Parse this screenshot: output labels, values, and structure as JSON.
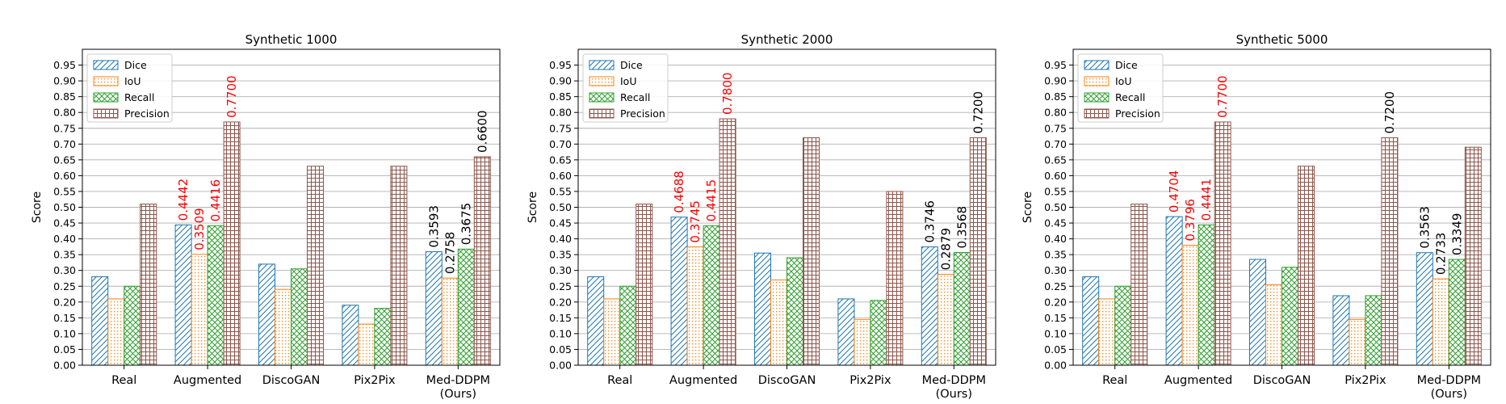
{
  "colors": {
    "Dice": "#1f77b4",
    "IoU": "#ff7f0e",
    "Recall": "#2ca02c",
    "Precision": "#8c564b",
    "highlight_label": "#ff0000",
    "normal_label": "#000000",
    "grid": "#b0b0b0"
  },
  "chart_data": [
    {
      "type": "bar",
      "title": "Synthetic 1000",
      "ylabel": "Score",
      "ylim": [
        0,
        1
      ],
      "yticks": [
        "0.00",
        "0.05",
        "0.10",
        "0.15",
        "0.20",
        "0.25",
        "0.30",
        "0.35",
        "0.40",
        "0.45",
        "0.50",
        "0.55",
        "0.60",
        "0.65",
        "0.70",
        "0.75",
        "0.80",
        "0.85",
        "0.90",
        "0.95"
      ],
      "grid": true,
      "legend": "top-left",
      "categories": [
        "Real",
        "Augmented",
        "DiscoGAN",
        "Pix2Pix",
        "Med-DDPM\n(Ours)"
      ],
      "series": [
        {
          "name": "Dice",
          "values": [
            0.28,
            0.4442,
            0.32,
            0.19,
            0.3593
          ]
        },
        {
          "name": "IoU",
          "values": [
            0.21,
            0.3509,
            0.24,
            0.13,
            0.2758
          ]
        },
        {
          "name": "Recall",
          "values": [
            0.25,
            0.4416,
            0.305,
            0.18,
            0.3675
          ]
        },
        {
          "name": "Precision",
          "values": [
            0.51,
            0.77,
            0.63,
            0.63,
            0.66
          ]
        }
      ],
      "labels": [
        {
          "category": 1,
          "series": 0,
          "text": "0.4442",
          "color": "red"
        },
        {
          "category": 1,
          "series": 1,
          "text": "0.3509",
          "color": "red"
        },
        {
          "category": 1,
          "series": 2,
          "text": "0.4416",
          "color": "red"
        },
        {
          "category": 1,
          "series": 3,
          "text": "0.7700",
          "color": "red"
        },
        {
          "category": 4,
          "series": 0,
          "text": "0.3593",
          "color": "black"
        },
        {
          "category": 4,
          "series": 1,
          "text": "0.2758",
          "color": "black"
        },
        {
          "category": 4,
          "series": 2,
          "text": "0.3675",
          "color": "black"
        },
        {
          "category": 4,
          "series": 3,
          "text": "0.6600",
          "color": "black"
        }
      ]
    },
    {
      "type": "bar",
      "title": "Synthetic 2000",
      "ylabel": "Score",
      "ylim": [
        0,
        1
      ],
      "yticks": [
        "0.00",
        "0.05",
        "0.10",
        "0.15",
        "0.20",
        "0.25",
        "0.30",
        "0.35",
        "0.40",
        "0.45",
        "0.50",
        "0.55",
        "0.60",
        "0.65",
        "0.70",
        "0.75",
        "0.80",
        "0.85",
        "0.90",
        "0.95"
      ],
      "grid": true,
      "legend": "top-left",
      "categories": [
        "Real",
        "Augmented",
        "DiscoGAN",
        "Pix2Pix",
        "Med-DDPM\n(Ours)"
      ],
      "series": [
        {
          "name": "Dice",
          "values": [
            0.28,
            0.4688,
            0.355,
            0.21,
            0.3746
          ]
        },
        {
          "name": "IoU",
          "values": [
            0.21,
            0.3745,
            0.27,
            0.145,
            0.2879
          ]
        },
        {
          "name": "Recall",
          "values": [
            0.25,
            0.4415,
            0.34,
            0.205,
            0.3568
          ]
        },
        {
          "name": "Precision",
          "values": [
            0.51,
            0.78,
            0.72,
            0.55,
            0.72
          ]
        }
      ],
      "labels": [
        {
          "category": 1,
          "series": 0,
          "text": "0.4688",
          "color": "red"
        },
        {
          "category": 1,
          "series": 1,
          "text": "0.3745",
          "color": "red"
        },
        {
          "category": 1,
          "series": 2,
          "text": "0.4415",
          "color": "red"
        },
        {
          "category": 1,
          "series": 3,
          "text": "0.7800",
          "color": "red"
        },
        {
          "category": 4,
          "series": 0,
          "text": "0.3746",
          "color": "black"
        },
        {
          "category": 4,
          "series": 1,
          "text": "0.2879",
          "color": "black"
        },
        {
          "category": 4,
          "series": 2,
          "text": "0.3568",
          "color": "black"
        },
        {
          "category": 4,
          "series": 3,
          "text": "0.7200",
          "color": "black"
        }
      ]
    },
    {
      "type": "bar",
      "title": "Synthetic 5000",
      "ylabel": "Score",
      "ylim": [
        0,
        1
      ],
      "yticks": [
        "0.00",
        "0.05",
        "0.10",
        "0.15",
        "0.20",
        "0.25",
        "0.30",
        "0.35",
        "0.40",
        "0.45",
        "0.50",
        "0.55",
        "0.60",
        "0.65",
        "0.70",
        "0.75",
        "0.80",
        "0.85",
        "0.90",
        "0.95"
      ],
      "grid": true,
      "legend": "top-left",
      "categories": [
        "Real",
        "Augmented",
        "DiscoGAN",
        "Pix2Pix",
        "Med-DDPM\n(Ours)"
      ],
      "series": [
        {
          "name": "Dice",
          "values": [
            0.28,
            0.4704,
            0.335,
            0.22,
            0.3563
          ]
        },
        {
          "name": "IoU",
          "values": [
            0.21,
            0.3796,
            0.255,
            0.145,
            0.2733
          ]
        },
        {
          "name": "Recall",
          "values": [
            0.25,
            0.4441,
            0.31,
            0.22,
            0.3349
          ]
        },
        {
          "name": "Precision",
          "values": [
            0.51,
            0.77,
            0.63,
            0.72,
            0.69
          ]
        }
      ],
      "labels": [
        {
          "category": 1,
          "series": 0,
          "text": "0.4704",
          "color": "red"
        },
        {
          "category": 1,
          "series": 1,
          "text": "0.3796",
          "color": "red"
        },
        {
          "category": 1,
          "series": 2,
          "text": "0.4441",
          "color": "red"
        },
        {
          "category": 1,
          "series": 3,
          "text": "0.7700",
          "color": "red"
        },
        {
          "category": 3,
          "series": 3,
          "text": "0.7200",
          "color": "black"
        },
        {
          "category": 4,
          "series": 0,
          "text": "0.3563",
          "color": "black"
        },
        {
          "category": 4,
          "series": 1,
          "text": "0.2733",
          "color": "black"
        },
        {
          "category": 4,
          "series": 2,
          "text": "0.3349",
          "color": "black"
        }
      ]
    }
  ]
}
